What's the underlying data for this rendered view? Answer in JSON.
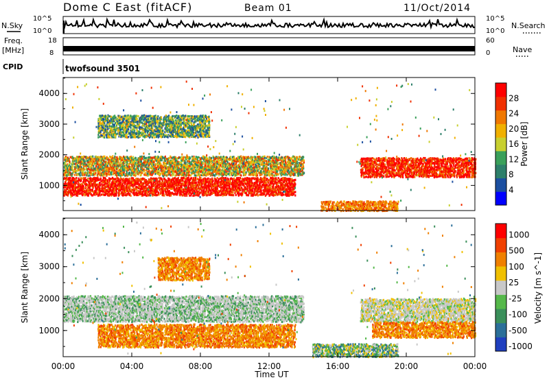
{
  "header": {
    "title": "Dome C East (fitACF)",
    "beam": "Beam 01",
    "date": "11/Oct/2014"
  },
  "strip_labels": {
    "nsky": "N.Sky",
    "nsearch": "N.Search",
    "freq": "Freq.",
    "freq_unit": "[MHz]",
    "nave": "Nave",
    "cpid": "CPID",
    "cpid_value": "twofsound 3501"
  },
  "strip_ticks": {
    "noise_left_top": "10^5",
    "noise_left_bottom": "10^0",
    "noise_right_top": "10^5",
    "noise_right_bottom": "10^0",
    "freq_left_top": "18",
    "freq_left_bottom": "8",
    "nave_right_top": "60",
    "nave_right_bottom": "0"
  },
  "colors": {
    "power_scale": [
      "#0000ff",
      "#1c4fa0",
      "#2d7f6a",
      "#3aa05a",
      "#c8d030",
      "#f0b000",
      "#f07800",
      "#f03000",
      "#ff0000"
    ],
    "velocity_scale": [
      "#1f3fbf",
      "#2b6f99",
      "#3a8f5a",
      "#55b84a",
      "#c8c8c8",
      "#f0c000",
      "#f08000",
      "#f04000",
      "#ff0000"
    ]
  },
  "chart_data": [
    {
      "type": "heatmap",
      "title": "",
      "ylabel": "Slant Range [km]",
      "xlabel": "",
      "x_ticks": [
        "00:00",
        "04:00",
        "08:00",
        "12:00",
        "16:00",
        "20:00",
        "00:00"
      ],
      "y_ticks": [
        "1000",
        "2000",
        "3000",
        "4000"
      ],
      "xlim_hours": [
        0,
        24
      ],
      "ylim_km": [
        180,
        4520
      ],
      "colorbar": {
        "label": "Power [dB]",
        "ticks": [
          "4",
          "8",
          "12",
          "16",
          "20",
          "24",
          "28"
        ],
        "range": [
          0,
          30
        ]
      },
      "regions": [
        {
          "name": "midrange band",
          "t": [
            0.0,
            14.0
          ],
          "r": [
            1350,
            2000
          ],
          "level": "orange-green"
        },
        {
          "name": "near band",
          "t": [
            0.0,
            13.5
          ],
          "r": [
            700,
            1300
          ],
          "level": "red"
        },
        {
          "name": "far echoes",
          "t": [
            2.0,
            8.5
          ],
          "r": [
            2600,
            3300
          ],
          "level": "green"
        },
        {
          "name": "evening band",
          "t": [
            17.3,
            24.0
          ],
          "r": [
            1300,
            1950
          ],
          "level": "red-orange"
        },
        {
          "name": "ground scatter",
          "t": [
            15.0,
            19.5
          ],
          "r": [
            200,
            500
          ],
          "level": "orange"
        }
      ]
    },
    {
      "type": "heatmap",
      "title": "",
      "ylabel": "Slant Range [km]",
      "xlabel": "Time UT",
      "x_ticks": [
        "00:00",
        "04:00",
        "08:00",
        "12:00",
        "16:00",
        "20:00",
        "00:00"
      ],
      "y_ticks": [
        "1000",
        "2000",
        "3000",
        "4000"
      ],
      "xlim_hours": [
        0,
        24
      ],
      "ylim_km": [
        180,
        4520
      ],
      "colorbar": {
        "label": "Velocity [m s^-1]",
        "ticks": [
          "1000",
          "500",
          "100",
          "25",
          "-25",
          "-100",
          "-500",
          "-1000"
        ],
        "range": [
          -1000,
          1000
        ]
      },
      "regions": [
        {
          "name": "midrange band",
          "t": [
            0.0,
            14.0
          ],
          "r": [
            1300,
            2100
          ],
          "level": "grey-green"
        },
        {
          "name": "near band",
          "t": [
            2.0,
            13.5
          ],
          "r": [
            500,
            1200
          ],
          "level": "orange"
        },
        {
          "name": "far echoes",
          "t": [
            5.5,
            8.5
          ],
          "r": [
            2600,
            3300
          ],
          "level": "orange"
        },
        {
          "name": "evening band",
          "t": [
            17.3,
            24.0
          ],
          "r": [
            1300,
            2000
          ],
          "level": "grey"
        },
        {
          "name": "evening near",
          "t": [
            18.0,
            24.0
          ],
          "r": [
            800,
            1300
          ],
          "level": "orange"
        },
        {
          "name": "ground scatter",
          "t": [
            14.5,
            19.5
          ],
          "r": [
            200,
            600
          ],
          "level": "green"
        }
      ]
    }
  ]
}
